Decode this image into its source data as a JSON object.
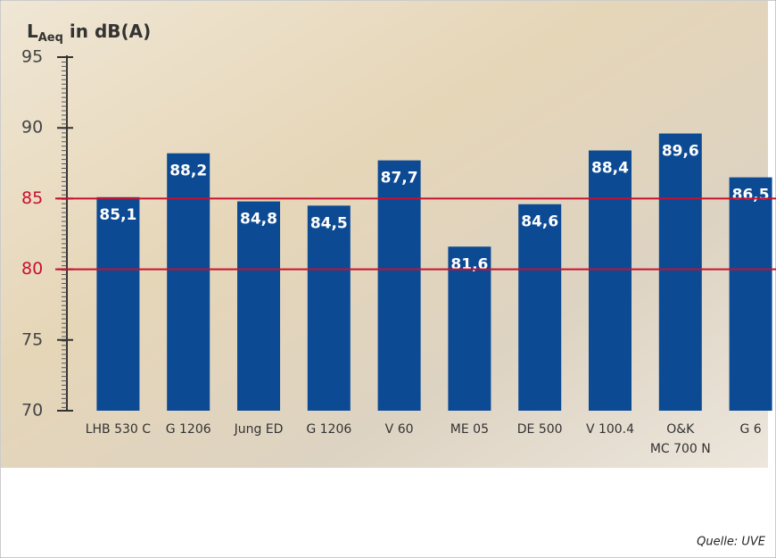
{
  "chart_data": {
    "type": "bar",
    "y_label_parts": [
      "L",
      "Aeq",
      " in dB(A)"
    ],
    "categories": [
      [
        "LHB 530 C"
      ],
      [
        "G 1206"
      ],
      [
        "Jung ED"
      ],
      [
        "G 1206"
      ],
      [
        "V 60"
      ],
      [
        "ME 05"
      ],
      [
        "DE 500"
      ],
      [
        "V 100.4"
      ],
      [
        "O&K",
        "MC 700 N"
      ],
      [
        "G 6"
      ]
    ],
    "values": [
      85.1,
      88.2,
      84.8,
      84.5,
      87.7,
      81.6,
      84.6,
      88.4,
      89.6,
      86.5
    ],
    "value_labels": [
      "85,1",
      "88,2",
      "84,8",
      "84,5",
      "87,7",
      "81,6",
      "84,6",
      "88,4",
      "89,6",
      "86,5"
    ],
    "color": "#0c4a94",
    "ylim": [
      70,
      95
    ],
    "yticks": [
      70,
      75,
      80,
      85,
      90,
      95
    ],
    "reference_lines": [
      80,
      85
    ],
    "reference_color": "#c8102e",
    "source": "Quelle: UVE"
  }
}
